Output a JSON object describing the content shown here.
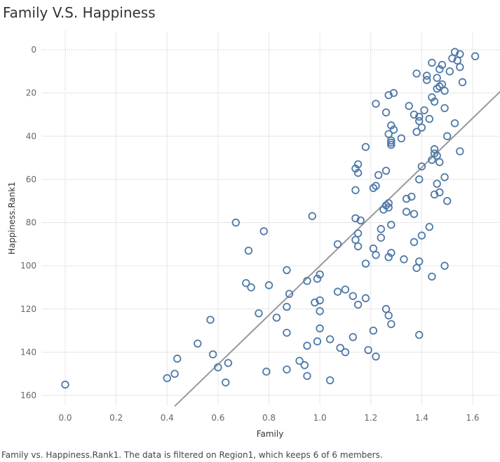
{
  "title": "Family V.S. Happiness",
  "caption": "Family vs. Happiness.Rank1.  The data is filtered on Region1, which keeps 6 of 6 members.",
  "colors": {
    "marker": "#4e79a7",
    "trend": "#999999",
    "grid": "#e6e6e6",
    "zero": "#bbbbbb"
  },
  "chart_data": {
    "type": "scatter",
    "xlabel": "Family",
    "ylabel": "Happiness.Rank1",
    "xlim": [
      -0.1,
      1.72
    ],
    "ylim": [
      0,
      165
    ],
    "y_reversed": true,
    "grid": true,
    "x_ticks": [
      "0.0",
      "0.2",
      "0.4",
      "0.6",
      "0.8",
      "1.0",
      "1.2",
      "1.4",
      "1.6"
    ],
    "y_ticks": [
      "0",
      "20",
      "40",
      "60",
      "80",
      "100",
      "120",
      "140",
      "160"
    ],
    "trend_line": {
      "x": [
        0.43,
        1.72
      ],
      "y": [
        165,
        18
      ]
    },
    "points": [
      [
        1.53,
        1
      ],
      [
        1.55,
        2
      ],
      [
        1.61,
        3
      ],
      [
        1.52,
        4
      ],
      [
        1.54,
        5
      ],
      [
        1.44,
        6
      ],
      [
        1.48,
        7
      ],
      [
        1.55,
        8
      ],
      [
        1.47,
        9
      ],
      [
        1.51,
        10
      ],
      [
        1.38,
        11
      ],
      [
        1.42,
        12
      ],
      [
        1.46,
        13
      ],
      [
        1.42,
        14
      ],
      [
        1.56,
        15
      ],
      [
        1.48,
        16
      ],
      [
        1.47,
        17
      ],
      [
        1.46,
        18
      ],
      [
        1.49,
        19
      ],
      [
        1.29,
        20
      ],
      [
        1.27,
        21
      ],
      [
        1.44,
        22
      ],
      [
        1.45,
        24
      ],
      [
        1.22,
        25
      ],
      [
        1.35,
        26
      ],
      [
        1.49,
        27
      ],
      [
        1.41,
        28
      ],
      [
        1.26,
        29
      ],
      [
        1.37,
        30
      ],
      [
        1.39,
        31
      ],
      [
        1.43,
        32
      ],
      [
        1.39,
        33
      ],
      [
        1.53,
        34
      ],
      [
        1.28,
        35
      ],
      [
        1.4,
        36
      ],
      [
        1.29,
        37
      ],
      [
        1.38,
        38
      ],
      [
        1.27,
        39
      ],
      [
        1.5,
        40
      ],
      [
        1.32,
        41
      ],
      [
        1.28,
        42
      ],
      [
        1.28,
        43
      ],
      [
        1.28,
        44
      ],
      [
        1.18,
        45
      ],
      [
        1.45,
        46
      ],
      [
        1.55,
        47
      ],
      [
        1.45,
        48
      ],
      [
        1.46,
        49
      ],
      [
        1.44,
        51
      ],
      [
        1.47,
        52
      ],
      [
        1.15,
        53
      ],
      [
        1.4,
        54
      ],
      [
        1.14,
        55
      ],
      [
        1.26,
        56
      ],
      [
        1.15,
        57
      ],
      [
        1.23,
        58
      ],
      [
        1.49,
        59
      ],
      [
        1.39,
        60
      ],
      [
        1.46,
        62
      ],
      [
        1.22,
        63
      ],
      [
        1.21,
        64
      ],
      [
        1.14,
        65
      ],
      [
        1.47,
        66
      ],
      [
        1.45,
        67
      ],
      [
        1.36,
        68
      ],
      [
        1.34,
        69
      ],
      [
        1.5,
        70
      ],
      [
        1.27,
        71
      ],
      [
        1.26,
        72
      ],
      [
        1.27,
        73
      ],
      [
        1.25,
        74
      ],
      [
        1.34,
        75
      ],
      [
        1.37,
        76
      ],
      [
        0.97,
        77
      ],
      [
        1.14,
        78
      ],
      [
        1.16,
        79
      ],
      [
        0.67,
        80
      ],
      [
        1.28,
        81
      ],
      [
        1.43,
        82
      ],
      [
        1.24,
        83
      ],
      [
        0.78,
        84
      ],
      [
        1.15,
        85
      ],
      [
        1.4,
        86
      ],
      [
        1.24,
        87
      ],
      [
        1.14,
        88
      ],
      [
        1.37,
        89
      ],
      [
        1.07,
        90
      ],
      [
        1.15,
        91
      ],
      [
        1.21,
        92
      ],
      [
        0.72,
        93
      ],
      [
        1.28,
        94
      ],
      [
        1.22,
        95
      ],
      [
        1.27,
        96
      ],
      [
        1.33,
        97
      ],
      [
        1.39,
        98
      ],
      [
        1.18,
        99
      ],
      [
        1.49,
        100
      ],
      [
        1.38,
        101
      ],
      [
        0.87,
        102
      ],
      [
        1.0,
        104
      ],
      [
        1.44,
        105
      ],
      [
        0.99,
        106
      ],
      [
        0.95,
        107
      ],
      [
        0.71,
        108
      ],
      [
        0.8,
        109
      ],
      [
        0.73,
        110
      ],
      [
        1.1,
        111
      ],
      [
        1.07,
        112
      ],
      [
        0.88,
        113
      ],
      [
        1.13,
        114
      ],
      [
        1.18,
        115
      ],
      [
        1.0,
        116
      ],
      [
        0.98,
        117
      ],
      [
        1.15,
        118
      ],
      [
        0.87,
        119
      ],
      [
        1.26,
        120
      ],
      [
        1.0,
        121
      ],
      [
        0.76,
        122
      ],
      [
        1.27,
        123
      ],
      [
        0.83,
        124
      ],
      [
        0.57,
        125
      ],
      [
        1.28,
        127
      ],
      [
        1.0,
        129
      ],
      [
        1.21,
        130
      ],
      [
        0.87,
        131
      ],
      [
        1.39,
        132
      ],
      [
        1.13,
        133
      ],
      [
        1.04,
        134
      ],
      [
        0.99,
        135
      ],
      [
        0.52,
        136
      ],
      [
        0.95,
        137
      ],
      [
        1.08,
        138
      ],
      [
        1.19,
        139
      ],
      [
        1.1,
        140
      ],
      [
        0.58,
        141
      ],
      [
        1.22,
        142
      ],
      [
        0.44,
        143
      ],
      [
        0.92,
        144
      ],
      [
        0.64,
        145
      ],
      [
        0.94,
        146
      ],
      [
        0.6,
        147
      ],
      [
        0.87,
        148
      ],
      [
        0.79,
        149
      ],
      [
        0.43,
        150
      ],
      [
        0.95,
        151
      ],
      [
        0.4,
        152
      ],
      [
        1.04,
        153
      ],
      [
        0.63,
        154
      ],
      [
        0.0,
        155
      ]
    ]
  }
}
